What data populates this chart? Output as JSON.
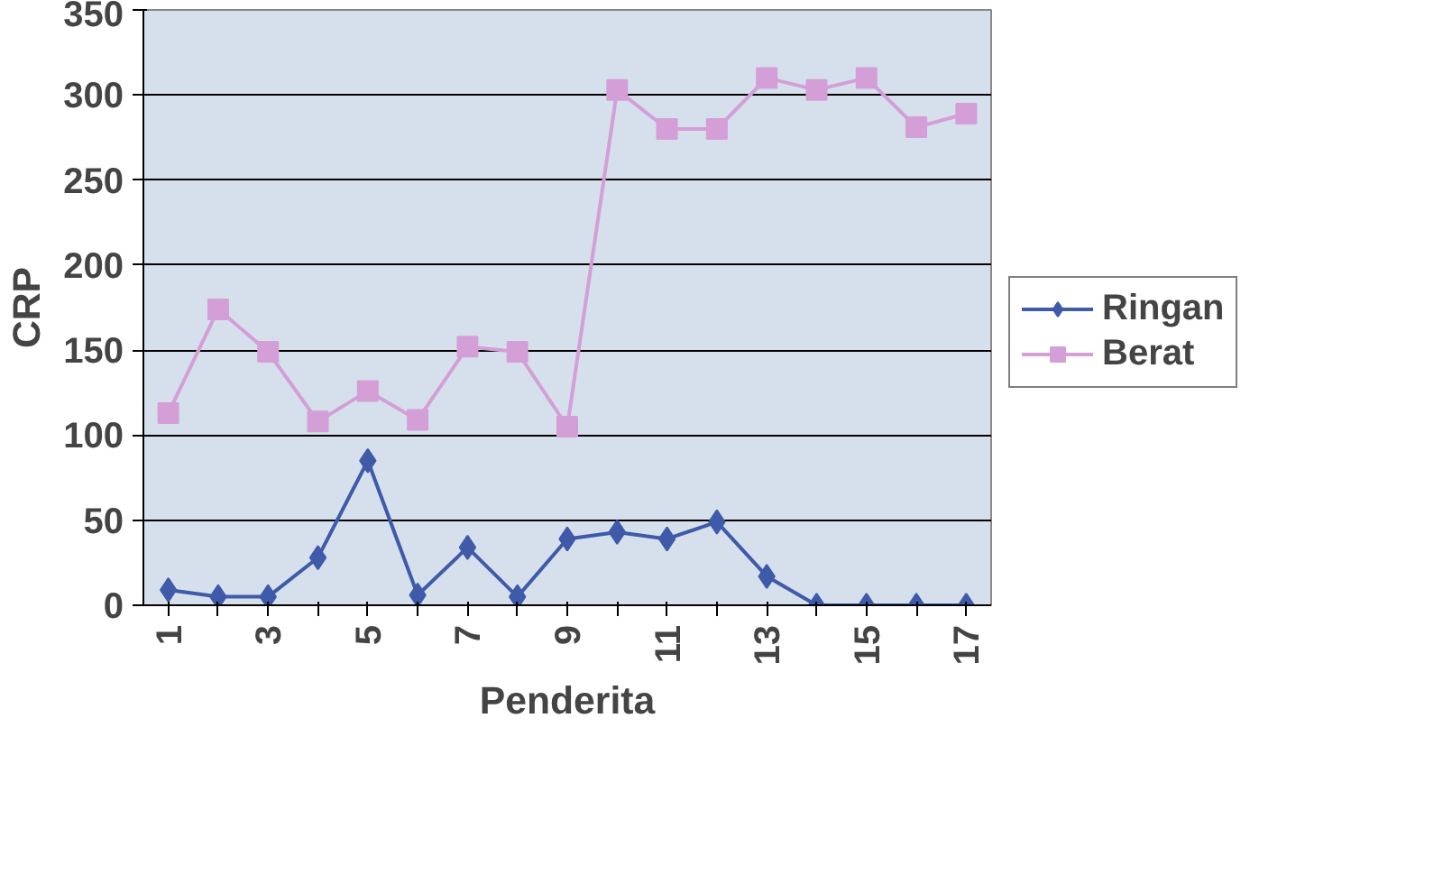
{
  "chart_data": {
    "type": "line",
    "xlabel": "Penderita",
    "ylabel": "CRP",
    "categories": [
      "1",
      null,
      "3",
      null,
      "5",
      null,
      "7",
      null,
      "9",
      null,
      "11",
      null,
      "13",
      null,
      "15",
      null,
      "17"
    ],
    "series": [
      {
        "name": "Ringan",
        "color": "#3f5aa8",
        "marker": "diamond",
        "values": [
          9,
          5,
          5,
          28,
          85,
          6,
          34,
          5,
          39,
          43,
          39,
          49,
          17,
          0,
          0,
          0,
          0
        ]
      },
      {
        "name": "Berat",
        "color": "#d39fd6",
        "marker": "square",
        "values": [
          113,
          174,
          149,
          108,
          126,
          109,
          152,
          149,
          105,
          303,
          280,
          280,
          310,
          303,
          310,
          281,
          289
        ]
      }
    ],
    "ylim": [
      0,
      350
    ],
    "yticks": [
      0,
      50,
      100,
      150,
      200,
      250,
      300,
      350
    ],
    "grid": "y",
    "legend": "right"
  }
}
